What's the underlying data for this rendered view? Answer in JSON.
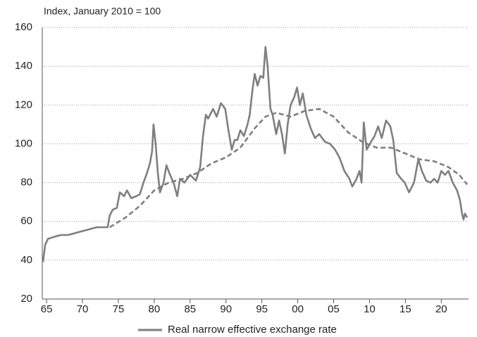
{
  "chart_data": {
    "type": "line",
    "subtitle": "Index, January 2010 = 100",
    "series": [
      {
        "name": "Real narrow effective exchange rate",
        "color": "#7f7f7f",
        "dashed": false,
        "x": [
          1964.5,
          1964.8,
          1965.2,
          1966,
          1967,
          1968,
          1969,
          1970,
          1971,
          1972,
          1973.5,
          1973.8,
          1974.2,
          1974.8,
          1975.2,
          1975.8,
          1976.2,
          1976.8,
          1977.5,
          1978,
          1978.5,
          1979,
          1979.4,
          1979.7,
          1979.9,
          1980.2,
          1980.5,
          1980.8,
          1981.3,
          1981.7,
          1982.2,
          1982.7,
          1983.2,
          1983.6,
          1984.2,
          1985,
          1985.8,
          1986.4,
          1986.8,
          1987.2,
          1987.5,
          1988.2,
          1988.7,
          1989.3,
          1989.9,
          1990.3,
          1990.8,
          1991.2,
          1991.6,
          1992,
          1992.5,
          1993,
          1993.3,
          1993.7,
          1994,
          1994.4,
          1994.8,
          1995.2,
          1995.5,
          1995.8,
          1996.2,
          1996.5,
          1997,
          1997.4,
          1997.8,
          1998.2,
          1998.6,
          1999,
          1999.5,
          1999.9,
          2000.3,
          2000.7,
          2001.2,
          2001.8,
          2002.4,
          2003,
          2003.8,
          2004.5,
          2005.2,
          2005.8,
          2006.5,
          2007.2,
          2007.6,
          2008.2,
          2008.6,
          2008.9,
          2009.2,
          2009.6,
          2010.2,
          2010.7,
          2011.2,
          2011.7,
          2012.3,
          2012.9,
          2013.3,
          2013.8,
          2014.4,
          2014.9,
          2015.5,
          2016.2,
          2016.8,
          2017.3,
          2017.9,
          2018.5,
          2019,
          2019.5,
          2020,
          2020.5,
          2021,
          2021.6,
          2022.2,
          2022.6,
          2022.9,
          2023.1,
          2023.3,
          2023.6
        ],
        "values": [
          39,
          48,
          51,
          52,
          53,
          53,
          54,
          55,
          56,
          57,
          57,
          63,
          66,
          67,
          75,
          73,
          76,
          72,
          73,
          74,
          80,
          85,
          90,
          96,
          110,
          100,
          85,
          75,
          80,
          89,
          84,
          80,
          73,
          82,
          80,
          84,
          81,
          88,
          104,
          115,
          113,
          118,
          114,
          121,
          118,
          108,
          97,
          102,
          102,
          107,
          104,
          110,
          115,
          128,
          136,
          130,
          135,
          134,
          150,
          140,
          118,
          115,
          105,
          112,
          105,
          95,
          110,
          120,
          124,
          129,
          120,
          126,
          115,
          108,
          103,
          105,
          101,
          100,
          97,
          93,
          86,
          82,
          78,
          82,
          86,
          80,
          111,
          97,
          101,
          104,
          109,
          103,
          112,
          109,
          102,
          85,
          82,
          80,
          75,
          80,
          92,
          86,
          81,
          80,
          82,
          80,
          86,
          84,
          86,
          80,
          76,
          71,
          64,
          61,
          64,
          62
        ]
      },
      {
        "color": "#7f7f7f",
        "dashed": true,
        "x": [
          1973.8,
          1976,
          1978,
          1980,
          1982,
          1984,
          1986,
          1988,
          1990,
          1992,
          1994,
          1995.5,
          1997,
          1999,
          2001,
          2003,
          2005,
          2007,
          2009,
          2011,
          2013,
          2015,
          2017,
          2019,
          2021,
          2022.5,
          2023.6
        ],
        "values": [
          57,
          62,
          68,
          76,
          80,
          82,
          85,
          90,
          93,
          98,
          108,
          114,
          116,
          114,
          117,
          118,
          114,
          106,
          101,
          98,
          98,
          95,
          92,
          91,
          88,
          84,
          79
        ]
      }
    ],
    "xlim": [
      1964.4,
      2023.8
    ],
    "xticks": [
      {
        "value": 1965,
        "label": "65"
      },
      {
        "value": 1970,
        "label": "70"
      },
      {
        "value": 1975,
        "label": "75"
      },
      {
        "value": 1980,
        "label": "80"
      },
      {
        "value": 1985,
        "label": "85"
      },
      {
        "value": 1990,
        "label": "90"
      },
      {
        "value": 1995,
        "label": "95"
      },
      {
        "value": 2000,
        "label": "00"
      },
      {
        "value": 2005,
        "label": "05"
      },
      {
        "value": 2010,
        "label": "10"
      },
      {
        "value": 2015,
        "label": "15"
      },
      {
        "value": 2020,
        "label": "20"
      }
    ],
    "ylim": [
      20,
      160
    ],
    "yticks": [
      20,
      40,
      60,
      80,
      100,
      120,
      140,
      160
    ],
    "grid": true,
    "legend": "bottom"
  }
}
